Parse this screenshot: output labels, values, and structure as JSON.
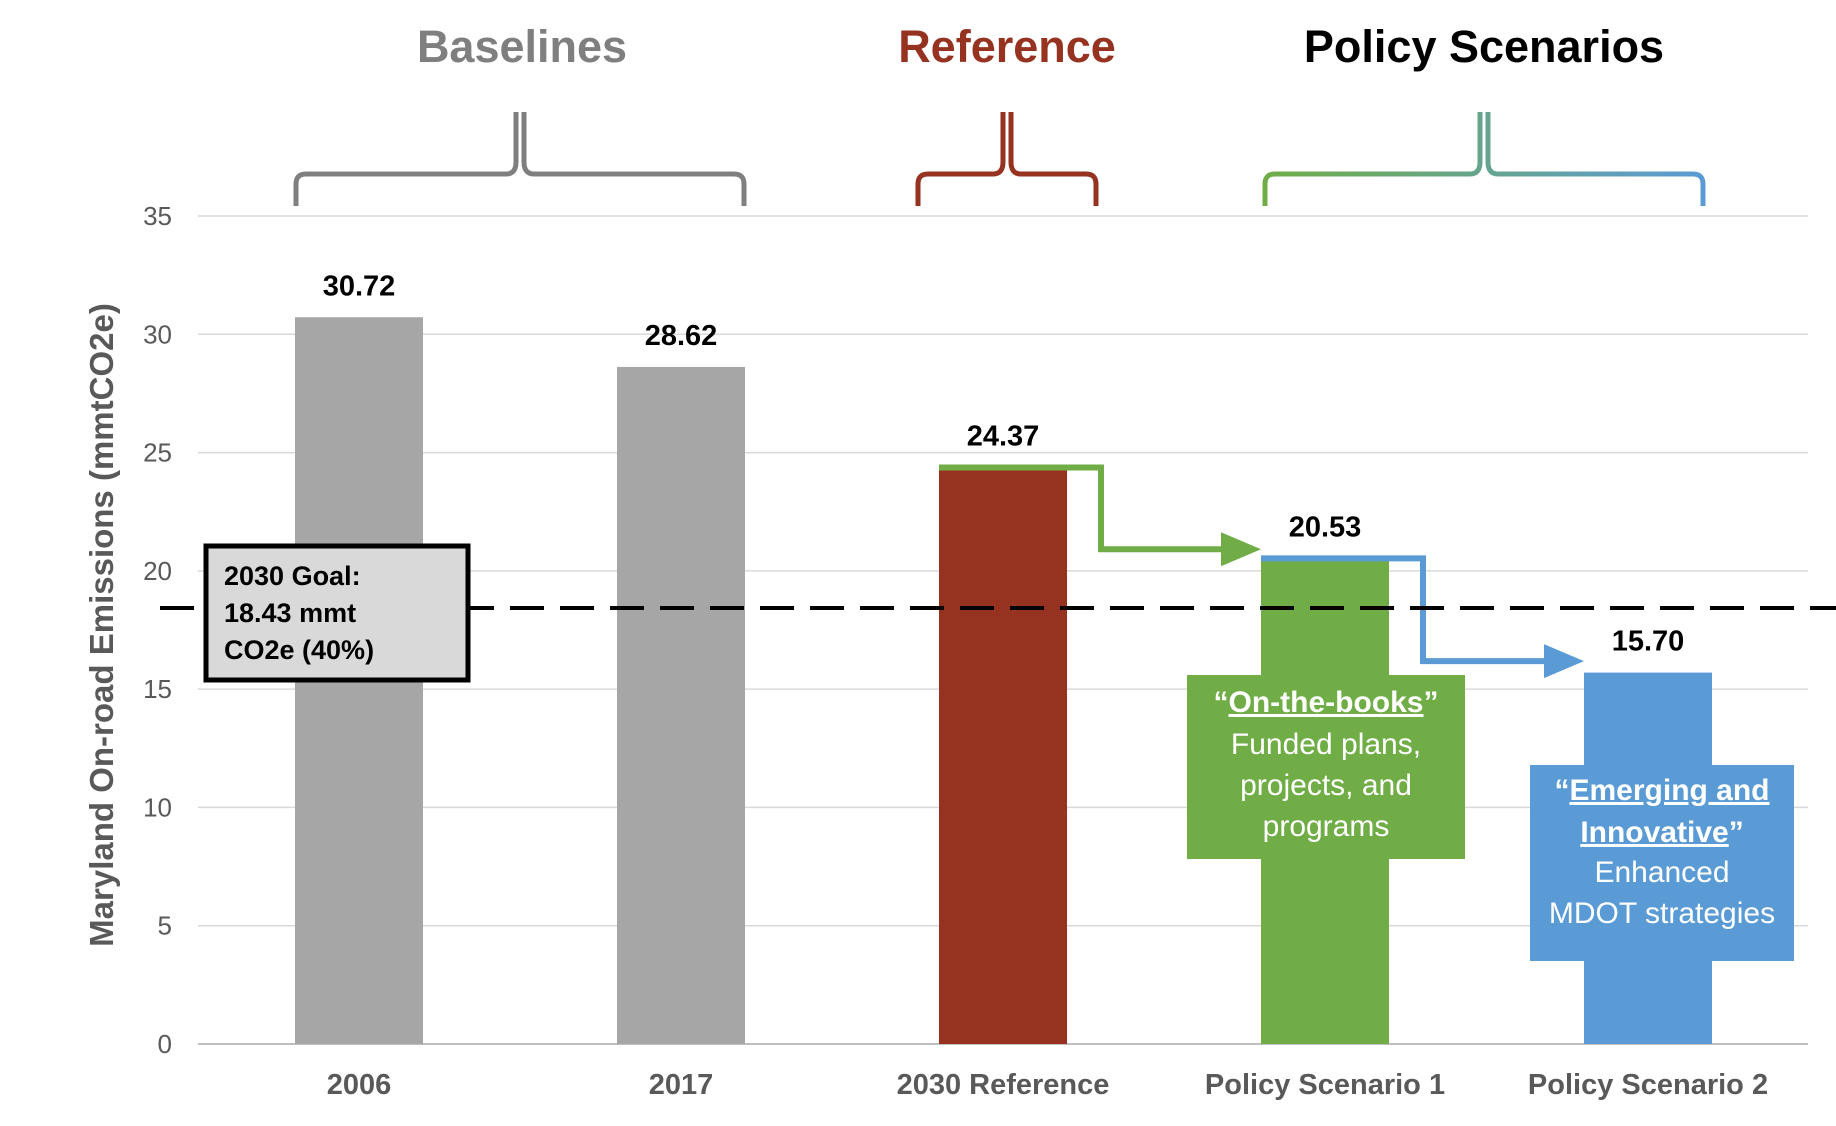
{
  "chart_data": {
    "type": "bar",
    "categories": [
      "2006",
      "2017",
      "2030 Reference",
      "Policy Scenario 1",
      "Policy Scenario 2"
    ],
    "values": [
      30.72,
      28.62,
      24.37,
      20.53,
      15.7
    ],
    "value_labels": [
      "30.72",
      "28.62",
      "24.37",
      "20.53",
      "15.70"
    ],
    "ylabel": "Maryland On-road Emissions (mmtCO2e)",
    "ylim": [
      0,
      35
    ],
    "yticks": [
      "0",
      "5",
      "10",
      "15",
      "20",
      "25",
      "30",
      "35"
    ],
    "grid": true,
    "colors": [
      "#A6A6A6",
      "#A6A6A6",
      "#963220",
      "#70AD47",
      "#5B9BD5"
    ],
    "groups": [
      {
        "label": "Baselines",
        "color": "#7F7F7F",
        "first": 0,
        "last": 1
      },
      {
        "label": "Reference",
        "color": "#963220",
        "first": 2,
        "last": 2
      },
      {
        "label": "Policy Scenarios",
        "color": "#000000",
        "first": 3,
        "last": 4
      }
    ],
    "goal": {
      "value": 18.43,
      "lines": [
        "2030 Goal:",
        "18.43 mmt",
        "CO2e (40%)"
      ]
    },
    "notes": [
      {
        "quote_open": "“",
        "title": "On-the-books",
        "quote_close": "”",
        "body": [
          "Funded plans,",
          "projects, and",
          "programs"
        ],
        "color": "#70AD47"
      },
      {
        "quote_open": "“",
        "title": [
          "Emerging and",
          "Innovative"
        ],
        "quote_close": "”",
        "body": [
          "Enhanced",
          "MDOT strategies"
        ],
        "color": "#5B9BD5"
      }
    ]
  }
}
